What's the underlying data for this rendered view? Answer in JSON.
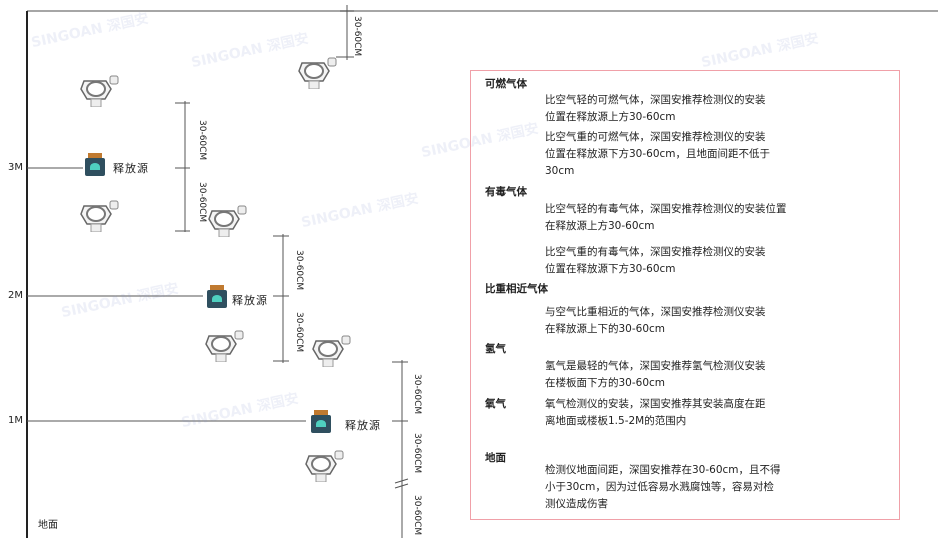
{
  "levels": {
    "l3": "3M",
    "l2": "2M",
    "l1": "1M",
    "ground": "地面"
  },
  "source_label": "释放源",
  "dimension_label": "30-60CM",
  "watermark": "SINGOAN 深国安",
  "panel": {
    "sections": [
      {
        "title": "可燃气体",
        "paragraphs": [
          [
            "比空气轻的可燃气体，深国安推荐检测仪的安装",
            "位置在释放源上方30-60cm"
          ],
          [
            "比空气重的可燃气体，深国安推荐检测仪的安装",
            "位置在释放源下方30-60cm，且地面间距不低于",
            "30cm"
          ]
        ]
      },
      {
        "title": "有毒气体",
        "paragraphs": [
          [
            "比空气轻的有毒气体，深国安推荐检测仪的安装位置",
            "在释放源上方30-60cm"
          ],
          [
            "比空气重的有毒气体，深国安推荐检测仪的安装",
            "位置在释放源下方30-60cm"
          ]
        ]
      },
      {
        "title": "比重相近气体",
        "paragraphs": [
          [
            "与空气比重相近的气体，深国安推荐检测仪安装",
            "在释放源上下的30-60cm"
          ]
        ]
      },
      {
        "title": "氢气",
        "paragraphs": [
          [
            "氢气是最轻的气体，深国安推荐氢气检测仪安装",
            "在楼板面下方的30-60cm"
          ]
        ]
      },
      {
        "title": "氧气",
        "paragraphs": [
          [
            "氧气检测仪的安装，深国安推荐其安装高度在距",
            "离地面或楼板1.5-2M的范围内"
          ]
        ]
      },
      {
        "title": "地面",
        "paragraphs": [
          [
            "检测仪地面间距，深国安推荐在30-60cm，且不得",
            "小于30cm，因为过低容易水溅腐蚀等，容易对检",
            "测仪造成伤害"
          ]
        ]
      }
    ]
  },
  "colors": {
    "frame": "#222222",
    "panel_border": "#f0a0a8",
    "source_body": "#2f4f5f",
    "source_cap": "#c07a30",
    "source_icon": "#4fd0c0"
  }
}
